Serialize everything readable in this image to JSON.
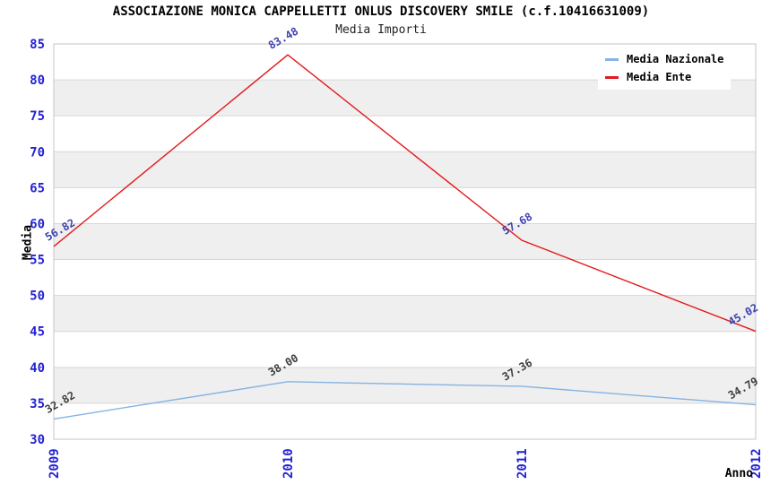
{
  "chart_data": {
    "type": "line",
    "title": "ASSOCIAZIONE MONICA CAPPELLETTI ONLUS DISCOVERY SMILE (c.f.10416631009)",
    "subtitle": "Media Importi",
    "xlabel": "Anno",
    "ylabel": "Media",
    "categories": [
      "2009",
      "2010",
      "2011",
      "2012"
    ],
    "series": [
      {
        "name": "Media Nazionale",
        "color": "#85b3e3",
        "label_color": "#3d3d3d",
        "values": [
          32.82,
          38.0,
          37.36,
          34.79
        ]
      },
      {
        "name": "Media Ente",
        "color": "#e31a1c",
        "label_color": "#3f3fb0",
        "values": [
          56.82,
          83.48,
          57.68,
          45.02
        ]
      }
    ],
    "ylim": [
      30,
      85
    ],
    "ytick_step": 5,
    "yticks": [
      30,
      35,
      40,
      45,
      50,
      55,
      60,
      65,
      70,
      75,
      80,
      85
    ],
    "grid": true,
    "bands": true,
    "legend_position": "top-right",
    "value_label_decimals": 2,
    "colors": {
      "tick_label": "#2323d3",
      "grid_line": "#d6d6d6",
      "band_fill": "#efefef",
      "plot_border": "#c6c6c6",
      "title": "#000000",
      "subtitle": "#222222"
    }
  }
}
